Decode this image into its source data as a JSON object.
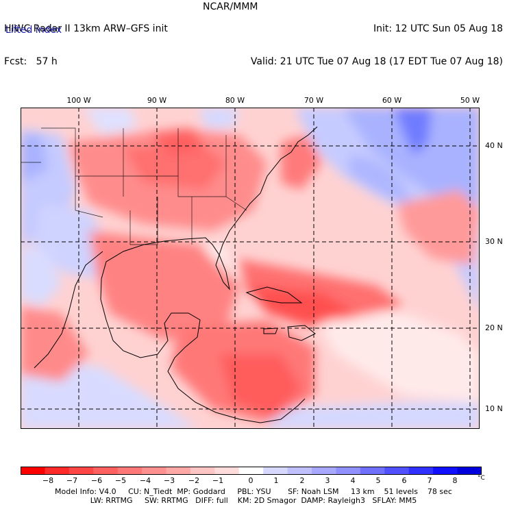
{
  "header": {
    "model_line": "HIWC Radar II 13km ARW–GFS init",
    "org": "NCAR/MMM",
    "forecast_line": "Fcst:   57 h",
    "init_line": "Init: 12 UTC Sun 05 Aug 18",
    "valid_line": "Valid: 21 UTC Tue 07 Aug 18 (17 EDT Tue 07 Aug 18)"
  },
  "field_name": "Lifted index",
  "map": {
    "longitude_labels": [
      "100 W",
      "90 W",
      "80 W",
      "70 W",
      "60 W",
      "50 W"
    ],
    "latitude_labels": [
      "40 N",
      "30 N",
      "20 N",
      "10 N"
    ]
  },
  "colorbar": {
    "unit": "°C",
    "ticks": [
      "−8",
      "−7",
      "−6",
      "−5",
      "−4",
      "−3",
      "−2",
      "−1",
      "0",
      "1",
      "2",
      "3",
      "4",
      "5",
      "6",
      "7",
      "8"
    ],
    "colors": [
      "#ff0000",
      "#ff2a2a",
      "#ff4747",
      "#ff6060",
      "#ff7878",
      "#ff9090",
      "#ffa8a8",
      "#ffc4c4",
      "#ffdcdc",
      "#ffffff",
      "#d8d8ff",
      "#c0c0ff",
      "#a8a8ff",
      "#9090ff",
      "#7070ff",
      "#5050ff",
      "#3030ff",
      "#1010ff",
      "#0000dd"
    ]
  },
  "footer": {
    "line1": "Model Info: V4.0     CU: N_Tiedt  MP: Goddard     PBL: YSU       SF: Noah LSM     13 km    51 levels    78 sec",
    "line2": "LW: RRTMG     SW: RRTMG   DIFF: full    KM: 2D Smagor  DAMP: Rayleigh3   SFLAY: MM5"
  }
}
